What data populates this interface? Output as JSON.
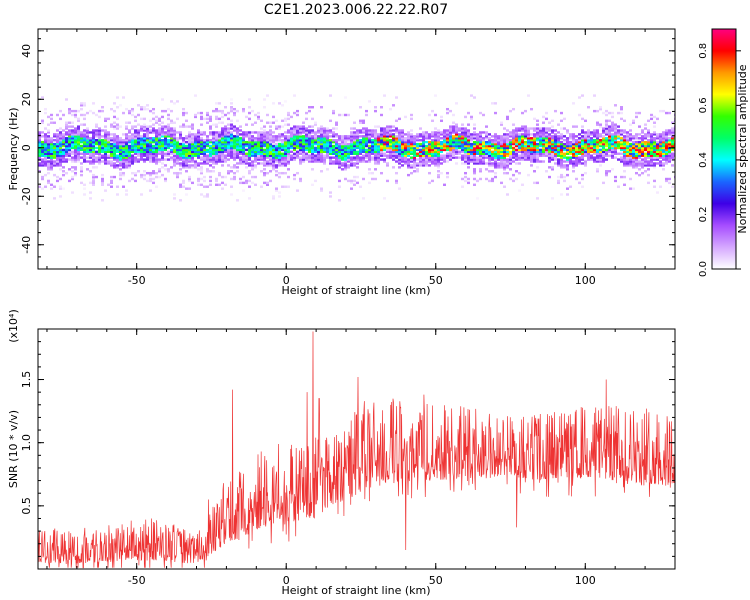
{
  "chart_data": [
    {
      "type": "heatmap",
      "title": "C2E1.2023.006.22.22.R07",
      "xlabel": "Height of straight line (km)",
      "ylabel": "Frequency (Hz)",
      "xlim": [
        -83,
        130
      ],
      "ylim": [
        -50,
        49
      ],
      "xticks": [
        -50,
        0,
        50,
        100
      ],
      "yticks": [
        -40,
        -20,
        0,
        20,
        40
      ],
      "colorbar": {
        "label": "Normalized spectral amplitude",
        "range": [
          0.0,
          0.88
        ],
        "ticks": [
          "0.0",
          "0.2",
          "0.4",
          "0.6",
          "0.8"
        ],
        "colors": [
          "#ffffff",
          "#d5a8ff",
          "#a64dff",
          "#3d00e6",
          "#1a66ff",
          "#00ffff",
          "#00ff66",
          "#33ff00",
          "#ffff00",
          "#ff9900",
          "#ff0000",
          "#ff0080"
        ]
      },
      "band": {
        "center_hz": 0,
        "core_halfwidth_hz": 3,
        "dense_halfwidth_hz": 7,
        "sparse_halfwidth_hz": 16
      }
    },
    {
      "type": "line",
      "xlabel": "Height of straight line (km)",
      "ylabel": "SNR (10 * v/v)",
      "multiplier": "(x10⁴)",
      "xlim": [
        -83,
        130
      ],
      "ylim": [
        0.0,
        1.9
      ],
      "xticks": [
        -50,
        0,
        50,
        100
      ],
      "yticks": [
        "0.5",
        "1.0",
        "1.5"
      ],
      "color": "#ee3333",
      "envelope": {
        "x": [
          -83,
          -70,
          -60,
          -50,
          -40,
          -30,
          -25,
          -20,
          -15,
          -10,
          -5,
          0,
          5,
          10,
          15,
          20,
          25,
          30,
          40,
          50,
          60,
          70,
          80,
          90,
          100,
          110,
          120,
          130
        ],
        "base": [
          0.05,
          0.04,
          0.06,
          0.07,
          0.06,
          0.04,
          0.12,
          0.2,
          0.25,
          0.3,
          0.35,
          0.35,
          0.4,
          0.4,
          0.5,
          0.55,
          0.6,
          0.65,
          0.7,
          0.7,
          0.72,
          0.72,
          0.7,
          0.72,
          0.72,
          0.7,
          0.68,
          0.65
        ],
        "upper": [
          0.3,
          0.32,
          0.35,
          0.4,
          0.38,
          0.28,
          0.45,
          0.7,
          0.8,
          0.95,
          0.95,
          0.95,
          1.05,
          1.05,
          1.2,
          1.25,
          1.35,
          1.35,
          1.35,
          1.3,
          1.3,
          1.25,
          1.25,
          1.25,
          1.3,
          1.3,
          1.3,
          1.3
        ]
      },
      "spikes": [
        {
          "x": -18,
          "y": 1.42
        },
        {
          "x": -26,
          "y": 0.55
        },
        {
          "x": 9,
          "y": 1.88
        },
        {
          "x": 7,
          "y": 1.4
        },
        {
          "x": 11,
          "y": 1.35
        },
        {
          "x": 24,
          "y": 1.52
        },
        {
          "x": 40,
          "y": 1.5
        },
        {
          "x": 40,
          "y": 0.15
        },
        {
          "x": 46,
          "y": 1.38
        },
        {
          "x": 77,
          "y": 0.33
        },
        {
          "x": 107,
          "y": 1.5
        }
      ]
    }
  ]
}
